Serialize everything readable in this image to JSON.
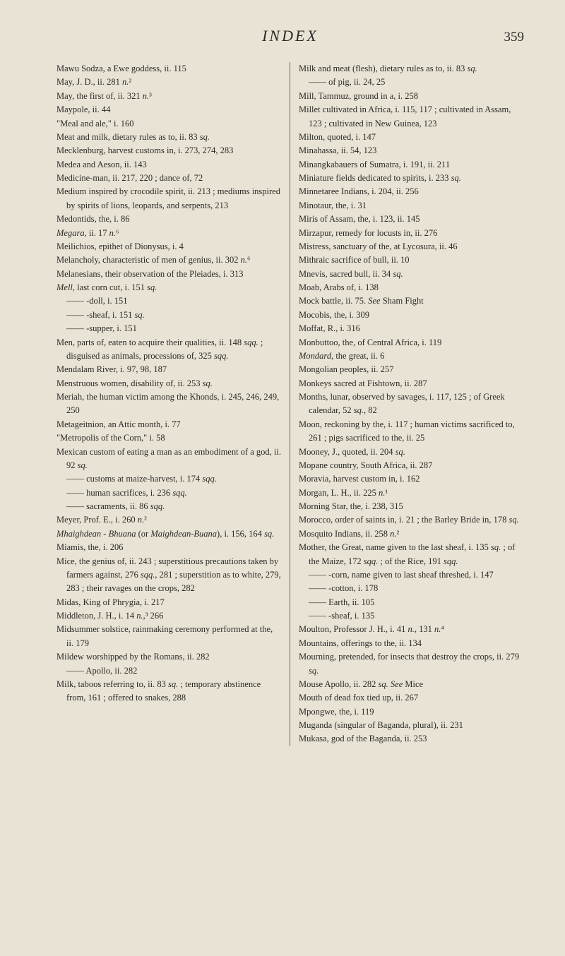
{
  "header": {
    "title": "INDEX",
    "page": "359"
  },
  "left": [
    "Mawu Sodza, a Ewe goddess, ii. 115",
    "May, J. D., ii. 281 n.²",
    "May, the first of, ii. 321 n.³",
    "Maypole, ii. 44",
    "\"Meal and ale,\" i. 160",
    "Meat and milk, dietary rules as to, ii. 83 sq.",
    "Mecklenburg, harvest customs in, i. 273, 274, 283",
    "Medea and Aeson, ii. 143",
    "Medicine-man, ii. 217, 220 ; dance of, 72",
    "Medium inspired by crocodile spirit, ii. 213 ; mediums inspired by spirits of lions, leopards, and serpents, 213",
    "Medontids, the, i. 86",
    "Megara, ii. 17 n.⁶",
    "Meilichios, epithet of Dionysus, i. 4",
    "Melancholy, characteristic of men of genius, ii. 302 n.⁶",
    "Melanesians, their observation of the Pleiades, i. 313",
    "Mell, last corn cut, i. 151 sq.",
    "—— -doll, i. 151",
    "—— -sheaf, i. 151 sq.",
    "—— -supper, i. 151",
    "Men, parts of, eaten to acquire their qualities, ii. 148 sqq. ; disguised as animals, processions of, 325 sqq.",
    "Mendalam River, i. 97, 98, 187",
    "Menstruous women, disability of, ii. 253 sq.",
    "Meriah, the human victim among the Khonds, i. 245, 246, 249, 250",
    "Metageitnion, an Attic month, i. 77",
    "\"Metropolis of the Corn,\" i. 58",
    "Mexican custom of eating a man as an embodiment of a god, ii. 92 sq.",
    "—— customs at maize-harvest, i. 174 sqq.",
    "—— human sacrifices, i. 236 sqq.",
    "—— sacraments, ii. 86 sqq.",
    "Meyer, Prof. E., i. 260 n.²",
    "Mhaighdean - Bhuana (or Maighdean-Buana), i. 156, 164 sq.",
    "Miamis, the, i. 206",
    "Mice, the genius of, ii. 243 ; superstitious precautions taken by farmers against, 276 sqq., 281 ; superstition as to white, 279, 283 ; their ravages on the crops, 282",
    "Midas, King of Phrygia, i. 217",
    "Middleton, J. H., i. 14 n.,³ 266",
    "Midsummer solstice, rainmaking ceremony performed at the, ii. 179",
    "Mildew worshipped by the Romans, ii. 282",
    "—— Apollo, ii. 282",
    "Milk, taboos referring to, ii. 83 sq. ; temporary abstinence from, 161 ; offered to snakes, 288"
  ],
  "right": [
    "Milk and meat (flesh), dietary rules as to, ii. 83 sq.",
    "—— of pig, ii. 24, 25",
    "Mill, Tammuz, ground in a, i. 258",
    "Millet cultivated in Africa, i. 115, 117 ; cultivated in Assam, 123 ; cultivated in New Guinea, 123",
    "Milton, quoted, i. 147",
    "Minahassa, ii. 54, 123",
    "Minangkabauers of Sumatra, i. 191, ii. 211",
    "Miniature fields dedicated to spirits, i. 233 sq.",
    "Minnetaree Indians, i. 204, ii. 256",
    "Minotaur, the, i. 31",
    "Miris of Assam, the, i. 123, ii. 145",
    "Mirzapur, remedy for locusts in, ii. 276",
    "Mistress, sanctuary of the, at Lycosura, ii. 46",
    "Mithraic sacrifice of bull, ii. 10",
    "Mnevis, sacred bull, ii. 34 sq.",
    "Moab, Arabs of, i. 138",
    "Mock battle, ii. 75. See Sham Fight",
    "Mocobis, the, i. 309",
    "Moffat, R., i. 316",
    "Monbuttoo, the, of Central Africa, i. 119",
    "Mondard, the great, ii. 6",
    "Mongolian peoples, ii. 257",
    "Monkeys sacred at Fishtown, ii. 287",
    "Months, lunar, observed by savages, i. 117, 125 ; of Greek calendar, 52 sq., 82",
    "Moon, reckoning by the, i. 117 ; human victims sacrificed to, 261 ; pigs sacrificed to the, ii. 25",
    "Mooney, J., quoted, ii. 204 sq.",
    "Mopane country, South Africa, ii. 287",
    "Moravia, harvest custom in, i. 162",
    "Morgan, L. H., ii. 225 n.¹",
    "Morning Star, the, i. 238, 315",
    "Morocco, order of saints in, i. 21 ; the Barley Bride in, 178 sq.",
    "Mosquito Indians, ii. 258 n.²",
    "Mother, the Great, name given to the last sheaf, i. 135 sq. ; of the Maize, 172 sqq. ; of the Rice, 191 sqq.",
    "—— -corn, name given to last sheaf threshed, i. 147",
    "—— -cotton, i. 178",
    "—— Earth, ii. 105",
    "—— -sheaf, i. 135",
    "Moulton, Professor J. H., i. 41 n., 131 n.⁴",
    "Mountains, offerings to the, ii. 134",
    "Mourning, pretended, for insects that destroy the crops, ii. 279 sq.",
    "Mouse Apollo, ii. 282 sq. See Mice",
    "Mouth of dead fox tied up, ii. 267",
    "Mpongwe, the, i. 119",
    "Muganda (singular of Baganda, plural), ii. 231",
    "Mukasa, god of the Baganda, ii. 253"
  ]
}
